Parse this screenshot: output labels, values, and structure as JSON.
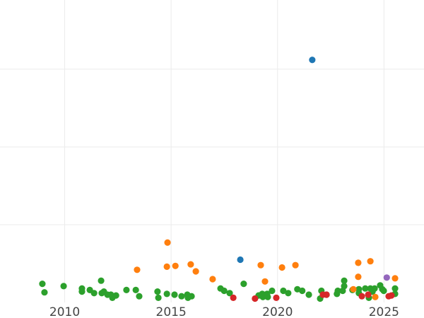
{
  "chart_data": {
    "type": "scatter",
    "title": "",
    "xlabel": "",
    "ylabel": "",
    "xlim": [
      2006.96,
      2026.88
    ],
    "ylim": [
      0,
      3.89
    ],
    "grid": true,
    "x_ticks": [
      2010,
      2015,
      2020,
      2025
    ],
    "x_tick_labels": [
      "2010",
      "2015",
      "2020",
      "2025"
    ],
    "y_gridlines": [
      1,
      2,
      3
    ],
    "series": [
      {
        "color": "#2ca02c",
        "points": [
          [
            2008.95,
            0.24
          ],
          [
            2009.05,
            0.13
          ],
          [
            2009.95,
            0.21
          ],
          [
            2010.81,
            0.18
          ],
          [
            2010.81,
            0.14
          ],
          [
            2011.18,
            0.16
          ],
          [
            2011.38,
            0.12
          ],
          [
            2011.71,
            0.28
          ],
          [
            2011.74,
            0.12
          ],
          [
            2011.84,
            0.14
          ],
          [
            2012.01,
            0.1
          ],
          [
            2012.17,
            0.1
          ],
          [
            2012.24,
            0.06
          ],
          [
            2012.41,
            0.09
          ],
          [
            2012.9,
            0.16
          ],
          [
            2013.34,
            0.16
          ],
          [
            2013.5,
            0.08
          ],
          [
            2014.36,
            0.14
          ],
          [
            2014.4,
            0.06
          ],
          [
            2014.8,
            0.11
          ],
          [
            2015.16,
            0.1
          ],
          [
            2015.49,
            0.08
          ],
          [
            2015.76,
            0.1
          ],
          [
            2015.79,
            0.06
          ],
          [
            2015.96,
            0.08
          ],
          [
            2017.32,
            0.18
          ],
          [
            2017.49,
            0.15
          ],
          [
            2017.75,
            0.12
          ],
          [
            2018.41,
            0.24
          ],
          [
            2019.11,
            0.09
          ],
          [
            2019.28,
            0.11
          ],
          [
            2019.31,
            0.07
          ],
          [
            2019.51,
            0.11
          ],
          [
            2019.54,
            0.07
          ],
          [
            2019.74,
            0.15
          ],
          [
            2020.27,
            0.15
          ],
          [
            2020.5,
            0.12
          ],
          [
            2020.93,
            0.17
          ],
          [
            2021.16,
            0.15
          ],
          [
            2021.47,
            0.1
          ],
          [
            2022.0,
            0.05
          ],
          [
            2022.06,
            0.15
          ],
          [
            2022.3,
            0.1
          ],
          [
            2022.79,
            0.11
          ],
          [
            2022.83,
            0.15
          ],
          [
            2023.06,
            0.15
          ],
          [
            2023.13,
            0.28
          ],
          [
            2023.13,
            0.21
          ],
          [
            2023.52,
            0.16
          ],
          [
            2023.82,
            0.17
          ],
          [
            2023.82,
            0.12
          ],
          [
            2024.12,
            0.18
          ],
          [
            2024.29,
            0.06
          ],
          [
            2024.36,
            0.18
          ],
          [
            2024.46,
            0.14
          ],
          [
            2024.56,
            0.18
          ],
          [
            2024.82,
            0.22
          ],
          [
            2024.92,
            0.17
          ],
          [
            2024.99,
            0.15
          ],
          [
            2025.52,
            0.18
          ],
          [
            2025.52,
            0.11
          ]
        ]
      },
      {
        "color": "#ff7f0e",
        "points": [
          [
            2014.83,
            0.77
          ],
          [
            2013.4,
            0.42
          ],
          [
            2014.8,
            0.46
          ],
          [
            2015.2,
            0.47
          ],
          [
            2015.92,
            0.49
          ],
          [
            2016.16,
            0.4
          ],
          [
            2016.95,
            0.3
          ],
          [
            2019.21,
            0.48
          ],
          [
            2019.41,
            0.27
          ],
          [
            2020.21,
            0.45
          ],
          [
            2020.84,
            0.48
          ],
          [
            2023.79,
            0.51
          ],
          [
            2024.36,
            0.53
          ],
          [
            2023.79,
            0.33
          ],
          [
            2023.56,
            0.17
          ],
          [
            2024.59,
            0.07
          ],
          [
            2025.52,
            0.31
          ]
        ]
      },
      {
        "color": "#1f77b4",
        "points": [
          [
            2021.63,
            3.12
          ],
          [
            2018.25,
            0.55
          ]
        ]
      },
      {
        "color": "#d62728",
        "points": [
          [
            2017.92,
            0.06
          ],
          [
            2018.94,
            0.05
          ],
          [
            2019.94,
            0.06
          ],
          [
            2022.13,
            0.1
          ],
          [
            2022.3,
            0.1
          ],
          [
            2023.96,
            0.08
          ],
          [
            2024.26,
            0.1
          ],
          [
            2025.22,
            0.08
          ],
          [
            2025.35,
            0.09
          ]
        ]
      },
      {
        "color": "#9467bd",
        "points": [
          [
            2025.13,
            0.32
          ]
        ]
      }
    ]
  }
}
